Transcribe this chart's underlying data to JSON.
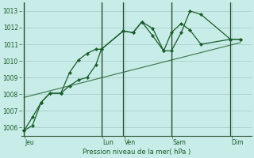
{
  "bg_color": "#c8ece8",
  "grid_color": "#a0ccc8",
  "line_color": "#1a5c2a",
  "vline_color": "#2a4a2a",
  "xlabel": "Pression niveau de la mer( hPa )",
  "ylim": [
    1005.5,
    1013.5
  ],
  "yticks": [
    1006,
    1007,
    1008,
    1009,
    1010,
    1011,
    1012,
    1013
  ],
  "xlim": [
    0,
    10.5
  ],
  "day_labels": [
    "Jeu",
    "Lun",
    "Ven",
    "Sam",
    "Dim"
  ],
  "day_positions": [
    0.15,
    3.7,
    4.7,
    6.9,
    9.6
  ],
  "vline_positions": [
    0.12,
    3.65,
    4.65,
    6.85,
    9.55
  ],
  "line1_x": [
    0.12,
    0.5,
    0.9,
    1.3,
    1.8,
    2.2,
    2.6,
    3.0,
    3.4,
    3.65,
    4.65,
    5.1,
    5.5,
    6.0,
    6.5,
    6.85,
    7.3,
    7.7,
    8.2,
    9.55,
    10.0
  ],
  "line1_y": [
    1005.8,
    1006.1,
    1007.5,
    1008.05,
    1008.05,
    1009.3,
    1010.05,
    1010.45,
    1010.7,
    1010.7,
    1011.8,
    1011.7,
    1012.35,
    1011.95,
    1010.6,
    1010.6,
    1011.7,
    1013.0,
    1012.8,
    1011.3,
    1011.3
  ],
  "line2_x": [
    0.12,
    0.5,
    0.9,
    1.3,
    1.8,
    2.2,
    2.6,
    3.0,
    3.4,
    3.65,
    4.65,
    5.1,
    5.5,
    6.0,
    6.5,
    6.85,
    7.3,
    7.7,
    8.2,
    9.55,
    10.0
  ],
  "line2_y": [
    1005.8,
    1006.6,
    1007.5,
    1008.05,
    1008.05,
    1008.5,
    1008.85,
    1009.0,
    1009.75,
    1010.7,
    1011.8,
    1011.7,
    1012.35,
    1011.5,
    1010.6,
    1011.7,
    1012.25,
    1011.85,
    1011.0,
    1011.3,
    1011.3
  ],
  "line3_x": [
    0.12,
    10.0
  ],
  "line3_y": [
    1007.8,
    1011.1
  ]
}
